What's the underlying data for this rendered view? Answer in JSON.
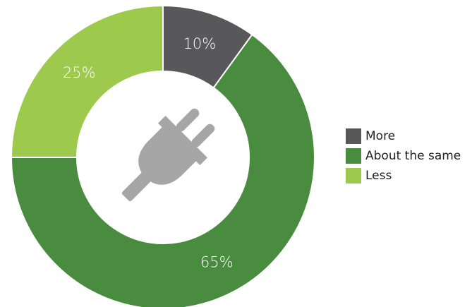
{
  "chart_data": {
    "type": "donut",
    "categories": [
      "More",
      "About the same",
      "Less"
    ],
    "values": [
      10,
      65,
      25
    ],
    "value_labels": [
      "10%",
      "65%",
      "25%"
    ],
    "colors": [
      "#58585a",
      "#4a8c3f",
      "#9dc94c"
    ],
    "legend": "right"
  }
}
